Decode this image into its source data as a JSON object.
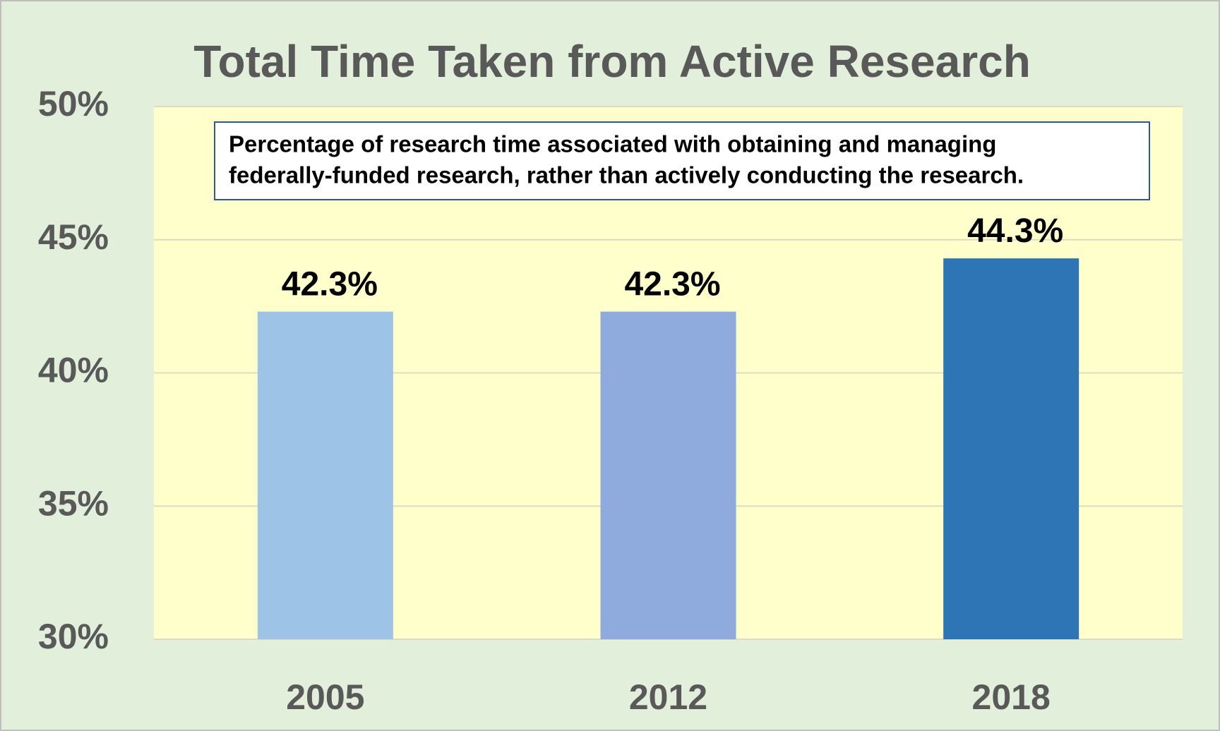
{
  "chart_data": {
    "type": "bar",
    "title": "Total Time Taken from Active Research",
    "annotation": [
      "Percentage of research time associated with obtaining and managing",
      "federally-funded research, rather than actively conducting the research."
    ],
    "categories": [
      "2005",
      "2012",
      "2018"
    ],
    "values": [
      42.3,
      42.3,
      44.3
    ],
    "value_labels": [
      "42.3%",
      "42.3%",
      "44.3%"
    ],
    "colors": [
      "#9dc3e6",
      "#8faadc",
      "#2e75b6"
    ],
    "ylim": [
      30,
      50
    ],
    "yticks": [
      {
        "value": 30,
        "label": "30%"
      },
      {
        "value": 35,
        "label": "35%"
      },
      {
        "value": 40,
        "label": "40%"
      },
      {
        "value": 45,
        "label": "45%"
      },
      {
        "value": 50,
        "label": "50%"
      }
    ],
    "grid": true
  }
}
